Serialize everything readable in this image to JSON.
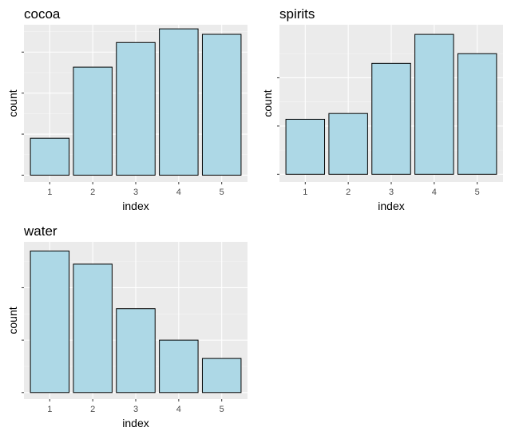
{
  "colors": {
    "panel_bg": "#ebebeb",
    "grid_major": "#ffffff",
    "grid_minor": "#f5f5f5",
    "bar_fill": "#add8e6",
    "bar_stroke": "#000000",
    "tick": "#333333"
  },
  "chart_data": [
    {
      "type": "bar",
      "title": "cocoa",
      "xlabel": "index",
      "ylabel": "count",
      "categories": [
        "1",
        "2",
        "3",
        "4",
        "5"
      ],
      "values": [
        27,
        79,
        97,
        107,
        103
      ],
      "ylim": [
        -5,
        110
      ],
      "y_major_ticks": [
        0,
        30,
        60,
        90
      ],
      "y_tick_labels_shown": false,
      "grid": true
    },
    {
      "type": "bar",
      "title": "spirits",
      "xlabel": "index",
      "ylabel": "count",
      "categories": [
        "1",
        "2",
        "3",
        "4",
        "5"
      ],
      "values": [
        57,
        63,
        115,
        145,
        125
      ],
      "ylim": [
        -8,
        155
      ],
      "y_major_ticks": [
        0,
        50,
        100
      ],
      "y_tick_labels_shown": false,
      "grid": true
    },
    {
      "type": "bar",
      "title": "water",
      "xlabel": "index",
      "ylabel": "count",
      "categories": [
        "1",
        "2",
        "3",
        "4",
        "5"
      ],
      "values": [
        108,
        98,
        64,
        40,
        26
      ],
      "ylim": [
        -5,
        115
      ],
      "y_major_ticks": [
        0,
        40,
        80
      ],
      "y_tick_labels_shown": false,
      "grid": true
    }
  ]
}
